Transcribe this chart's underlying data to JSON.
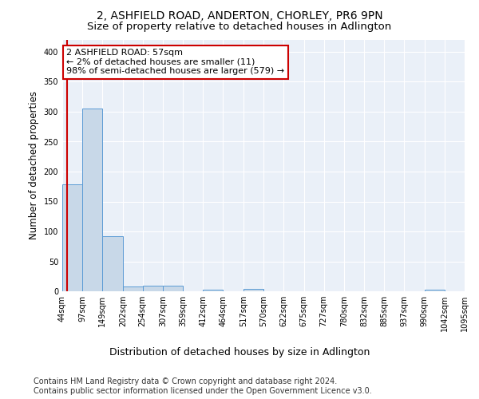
{
  "title1": "2, ASHFIELD ROAD, ANDERTON, CHORLEY, PR6 9PN",
  "title2": "Size of property relative to detached houses in Adlington",
  "xlabel": "Distribution of detached houses by size in Adlington",
  "ylabel": "Number of detached properties",
  "bin_edges": [
    44,
    97,
    149,
    202,
    254,
    307,
    359,
    412,
    464,
    517,
    570,
    622,
    675,
    727,
    780,
    832,
    885,
    937,
    990,
    1042,
    1095
  ],
  "bar_heights": [
    178,
    305,
    92,
    8,
    9,
    9,
    0,
    3,
    0,
    4,
    0,
    0,
    0,
    0,
    0,
    0,
    0,
    0,
    3,
    0
  ],
  "bar_color": "#c8d8e8",
  "bar_edge_color": "#5b9bd5",
  "property_line_x": 57,
  "property_line_color": "#cc0000",
  "annotation_text": "2 ASHFIELD ROAD: 57sqm\n← 2% of detached houses are smaller (11)\n98% of semi-detached houses are larger (579) →",
  "annotation_box_color": "#ffffff",
  "annotation_box_edge_color": "#cc0000",
  "ylim": [
    0,
    420
  ],
  "yticks": [
    0,
    50,
    100,
    150,
    200,
    250,
    300,
    350,
    400
  ],
  "footer_text": "Contains HM Land Registry data © Crown copyright and database right 2024.\nContains public sector information licensed under the Open Government Licence v3.0.",
  "background_color": "#eaf0f8",
  "title1_fontsize": 10,
  "title2_fontsize": 9.5,
  "xlabel_fontsize": 9,
  "ylabel_fontsize": 8.5,
  "footer_fontsize": 7,
  "tick_fontsize": 7,
  "annotation_fontsize": 8
}
